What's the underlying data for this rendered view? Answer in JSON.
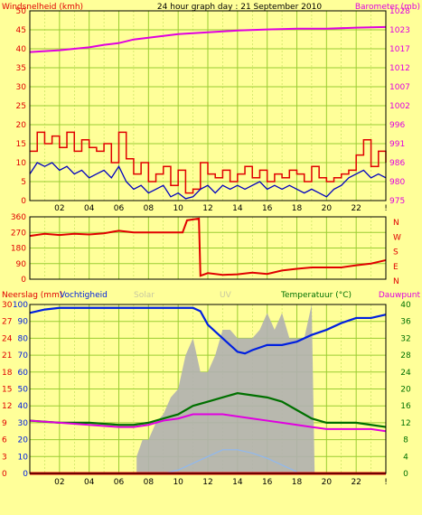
{
  "header": {
    "left_title": "Windsnelheid (kmh)",
    "center_title": "24 hour graph day : 21 September 2010",
    "right_title": "Barometer (mb)"
  },
  "bottom_header": {
    "left1": "Neerslag (mm)",
    "left2": "Vochtigheid",
    "faded1": "Solar",
    "faded2": "UV",
    "right1": "Temperatuur (°C)",
    "right2": "Dauwpunt"
  },
  "direction_letters": [
    "N",
    "W",
    "S",
    "E",
    "N"
  ],
  "colors": {
    "background": "#FFFF99",
    "grid": "#9ACD32",
    "wind_gust": "#E00000",
    "wind_avg": "#0000C0",
    "barometer": "#E000E0",
    "direction": "#E00000",
    "humidity": "#0020E0",
    "temperature": "#007000",
    "dewpoint": "#E000E0",
    "solar": "#B0B0B0",
    "uv": "#8FB8F0",
    "rain": "#E00000",
    "temp_axis": "#007000"
  },
  "chart_data": [
    {
      "type": "line",
      "name": "wind-barometer",
      "x_ticks": [
        "02",
        "04",
        "06",
        "08",
        "10",
        "12",
        "14",
        "16",
        "18",
        "20",
        "22",
        "!"
      ],
      "x_range_hours": [
        0,
        24
      ],
      "left_axis": {
        "label": "Windsnelheid (kmh)",
        "ticks": [
          "0",
          "5",
          "10",
          "15",
          "20",
          "25",
          "30",
          "35",
          "40",
          "45",
          "50"
        ],
        "range": [
          0,
          50
        ]
      },
      "right_axis": {
        "label": "Barometer (mb)",
        "ticks": [
          "975",
          "980",
          "986",
          "991",
          "996",
          "1002",
          "1007",
          "1012",
          "1017",
          "1023",
          "1028"
        ],
        "range": [
          975,
          1028
        ]
      },
      "series": [
        {
          "name": "Barometer (mb)",
          "axis": "right",
          "x": [
            0,
            2,
            4,
            5,
            6,
            7,
            8,
            10,
            12,
            14,
            16,
            18,
            20,
            22,
            24
          ],
          "y": [
            1016.5,
            1017,
            1017.8,
            1018.5,
            1019,
            1020,
            1020.5,
            1021.5,
            1022,
            1022.5,
            1022.8,
            1023,
            1023,
            1023.3,
            1023.5
          ]
        },
        {
          "axis": "left",
          "x": [
            0,
            0.5,
            1,
            1.5,
            2,
            2.5,
            3,
            3.5,
            4,
            4.5,
            5,
            5.5,
            6,
            6.5,
            7,
            7.5,
            8,
            8.5,
            9,
            9.5,
            10,
            10.5,
            11,
            11.5,
            12,
            12.5,
            13,
            13.5,
            14,
            14.5,
            15,
            15.5,
            16,
            16.5,
            17,
            17.5,
            18,
            18.5,
            19,
            19.5,
            20,
            20.5,
            21,
            21.5,
            22,
            22.5,
            23,
            23.5,
            24
          ],
          "y": [
            13,
            18,
            15,
            17,
            14,
            18,
            13,
            16,
            14,
            13,
            15,
            10,
            18,
            11,
            7,
            10,
            5,
            7,
            9,
            4,
            8,
            2,
            3,
            10,
            7,
            6,
            8,
            5,
            7,
            9,
            6,
            8,
            5,
            7,
            6,
            8,
            7,
            5,
            9,
            6,
            5,
            6,
            7,
            8,
            12,
            16,
            9,
            13,
            10
          ]
        },
        {
          "axis": "left",
          "x": [
            0,
            0.5,
            1,
            1.5,
            2,
            2.5,
            3,
            3.5,
            4,
            4.5,
            5,
            5.5,
            6,
            6.5,
            7,
            7.5,
            8,
            8.5,
            9,
            9.5,
            10,
            10.5,
            11,
            11.5,
            12,
            12.5,
            13,
            13.5,
            14,
            14.5,
            15,
            15.5,
            16,
            16.5,
            17,
            17.5,
            18,
            18.5,
            19,
            19.5,
            20,
            20.5,
            21,
            21.5,
            22,
            22.5,
            23,
            23.5,
            24
          ],
          "y": [
            7,
            10,
            9,
            10,
            8,
            9,
            7,
            8,
            6,
            7,
            8,
            6,
            9,
            5,
            3,
            4,
            2,
            3,
            4,
            1,
            2,
            0.5,
            1,
            3,
            4,
            2,
            4,
            3,
            4,
            3,
            4,
            5,
            3,
            4,
            3,
            4,
            3,
            2,
            3,
            2,
            1,
            3,
            4,
            6,
            7,
            8,
            6,
            7,
            6
          ]
        }
      ]
    },
    {
      "type": "line",
      "name": "wind-direction",
      "x_range_hours": [
        0,
        24
      ],
      "left_axis": {
        "ticks": [
          "0",
          "90",
          "180",
          "270",
          "360"
        ],
        "range": [
          0,
          360
        ]
      },
      "series": [
        {
          "axis": "left",
          "x": [
            0,
            1,
            2,
            3,
            4,
            5,
            6,
            7,
            8,
            9,
            10,
            10.3,
            10.6,
            11.4,
            11.5,
            12,
            13,
            14,
            15,
            16,
            17,
            18,
            19,
            20,
            21,
            22,
            23,
            24
          ],
          "y": [
            250,
            262,
            255,
            262,
            258,
            265,
            280,
            270,
            270,
            270,
            270,
            270,
            340,
            350,
            20,
            35,
            25,
            28,
            38,
            30,
            50,
            60,
            68,
            68,
            68,
            80,
            90,
            110
          ]
        }
      ]
    },
    {
      "type": "line",
      "name": "rain-humidity-temperature",
      "x_range_hours": [
        0,
        24
      ],
      "left_axis": {
        "label": "Vochtigheid",
        "ticks": [
          "0",
          "10",
          "20",
          "30",
          "40",
          "50",
          "60",
          "70",
          "80",
          "90",
          "100"
        ],
        "range": [
          0,
          100
        ]
      },
      "left_axis_inner": {
        "label": "Neerslag (mm)",
        "ticks": [
          "0",
          "3",
          "6",
          "9",
          "12",
          "15",
          "18",
          "21",
          "24",
          "27",
          "30"
        ],
        "range": [
          0,
          30
        ]
      },
      "right_axis": {
        "label": "Temperatuur (°C)",
        "ticks": [
          "0",
          "4",
          "8",
          "12",
          "16",
          "20",
          "24",
          "28",
          "32",
          "36",
          "40"
        ],
        "range": [
          0,
          40
        ]
      },
      "series": [
        {
          "name": "Vochtigheid",
          "axis": "left",
          "x": [
            0,
            1,
            2,
            4,
            6,
            8,
            10,
            11,
            11.5,
            12,
            13,
            14,
            14.5,
            15,
            16,
            17,
            18,
            19,
            20,
            21,
            22,
            23,
            24
          ],
          "y": [
            95,
            97,
            98,
            98,
            98,
            98,
            98,
            98,
            96,
            88,
            80,
            72,
            71,
            73,
            76,
            76,
            78,
            82,
            85,
            89,
            92,
            92,
            94
          ]
        },
        {
          "name": "Temperatuur (°C)",
          "axis": "right",
          "x": [
            0,
            2,
            4,
            6,
            7,
            8,
            9,
            10,
            11,
            12,
            13,
            14,
            15,
            16,
            17,
            18,
            19,
            20,
            21,
            22,
            23,
            24
          ],
          "y": [
            12.5,
            12,
            12,
            11.5,
            11.5,
            12,
            13,
            14,
            16,
            17,
            18,
            19,
            18.5,
            18,
            17,
            15,
            13,
            12,
            12,
            12,
            11.5,
            11
          ]
        },
        {
          "name": "Dauwpunt",
          "axis": "right",
          "x": [
            0,
            2,
            4,
            6,
            7,
            8,
            9,
            10,
            11,
            12,
            13,
            14,
            15,
            16,
            17,
            18,
            19,
            20,
            21,
            22,
            23,
            24
          ],
          "y": [
            12.5,
            12,
            11.5,
            11,
            11,
            11.5,
            12.5,
            13,
            14,
            14,
            14,
            13.5,
            13,
            12.5,
            12,
            11.5,
            11,
            10.5,
            10.5,
            10.5,
            10.5,
            10
          ]
        },
        {
          "name": "Solar",
          "axis": "left",
          "x": [
            7.2,
            7.6,
            8,
            8.5,
            9,
            9.5,
            10,
            10.5,
            11,
            11.5,
            12,
            12.5,
            13,
            13.5,
            14,
            14.5,
            15,
            15.5,
            16,
            16.5,
            17,
            17.5,
            18,
            18.5,
            19,
            19.2
          ],
          "y": [
            10,
            20,
            20,
            30,
            35,
            45,
            50,
            70,
            80,
            60,
            60,
            70,
            85,
            85,
            80,
            80,
            80,
            85,
            95,
            85,
            95,
            80,
            80,
            80,
            100,
            0
          ]
        },
        {
          "name": "UV",
          "axis": "left",
          "x": [
            9,
            10,
            11,
            12,
            13,
            14,
            15,
            16,
            17,
            18
          ],
          "y": [
            0,
            2,
            6,
            10,
            14,
            14,
            12,
            9,
            5,
            1
          ]
        },
        {
          "name": "Neerslag (mm)",
          "axis": "left_inner",
          "x": [
            0,
            24
          ],
          "y": [
            0,
            0
          ]
        }
      ]
    }
  ]
}
